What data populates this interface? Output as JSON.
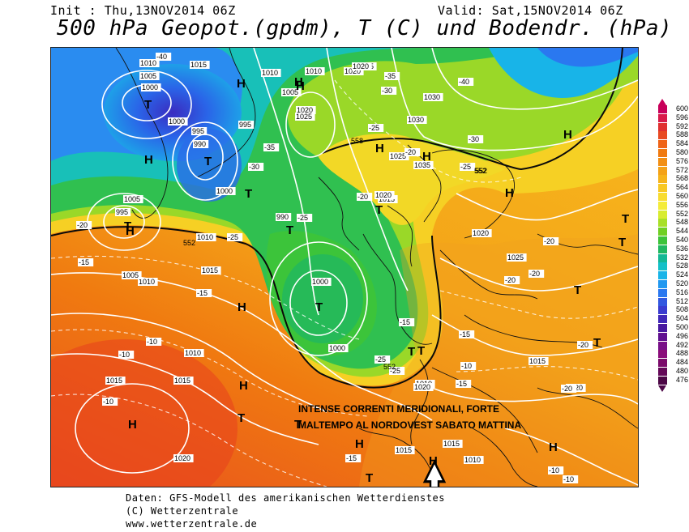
{
  "header": {
    "init": "Init : Thu,13NOV2014 06Z",
    "valid": "Valid: Sat,15NOV2014 06Z",
    "title": "500 hPa Geopot.(gpdm), T (C) und Bodendr. (hPa)"
  },
  "legend": {
    "values": [
      "600",
      "596",
      "592",
      "588",
      "584",
      "580",
      "576",
      "572",
      "568",
      "564",
      "560",
      "556",
      "552",
      "548",
      "544",
      "540",
      "536",
      "532",
      "528",
      "524",
      "520",
      "516",
      "512",
      "508",
      "504",
      "500",
      "496",
      "492",
      "488",
      "484",
      "480",
      "476"
    ],
    "colors": [
      "#c8005a",
      "#d81a4a",
      "#e03030",
      "#e84a22",
      "#ef6418",
      "#f07a10",
      "#f28f14",
      "#f4a218",
      "#f6b41c",
      "#f8c824",
      "#f8dc30",
      "#f4ec3a",
      "#d8ec30",
      "#a8e028",
      "#70d024",
      "#3cc43a",
      "#20b860",
      "#14b894",
      "#14c0c8",
      "#18b4e8",
      "#2098f0",
      "#2a78f0",
      "#3258e0",
      "#3a3cd0",
      "#4028b8",
      "#4818a0",
      "#601090",
      "#781088",
      "#8a0c7a",
      "#7a0a6a",
      "#640858",
      "#4c0646"
    ]
  },
  "annotation": {
    "line1": "INTENSE CORRENTI MERIDIONALI, FORTE",
    "line2": "MALTEMPO AL NORDOVEST SABATO MATTINA"
  },
  "pressure_labels": [
    "1010",
    "1015",
    "1005",
    "1000",
    "1010",
    "1010",
    "1005",
    "1020",
    "1025",
    "995",
    "990",
    "1030",
    "1025",
    "1035",
    "1020",
    "1030",
    "1015",
    "1000",
    "995",
    "1000",
    "1005",
    "1010",
    "1010",
    "1015",
    "1020",
    "990",
    "1025",
    "1005",
    "995",
    "1000",
    "1000",
    "1010",
    "1010",
    "1015",
    "1015",
    "1020",
    "1015",
    "1020",
    "1015",
    "1020",
    "1015",
    "1010",
    "1020",
    "1015",
    "1020"
  ],
  "temp_labels": [
    "-40",
    "-35",
    "-30",
    "-40",
    "-35",
    "-30",
    "-25",
    "-30",
    "-25",
    "-20",
    "-25",
    "-20",
    "-25",
    "-15",
    "-20",
    "-20",
    "-20",
    "-20",
    "-15",
    "-15",
    "-10",
    "-15",
    "-10",
    "-10",
    "-20",
    "-20",
    "-15",
    "-25",
    "-25",
    "-15",
    "-10",
    "-10",
    "-10"
  ],
  "systems": {
    "H": [
      "H",
      "H",
      "H",
      "H",
      "H",
      "H",
      "H",
      "H",
      "H",
      "H",
      "H",
      "H",
      "H",
      "H",
      "H"
    ],
    "T": [
      "T",
      "T",
      "T",
      "T",
      "T",
      "T",
      "T",
      "T",
      "T",
      "T",
      "T",
      "T",
      "T",
      "T",
      "T",
      "T"
    ]
  },
  "geopotential_labels": [
    "558",
    "552",
    "552",
    "552",
    "552"
  ],
  "footer": {
    "line1": "Daten: GFS-Modell des amerikanischen Wetterdienstes",
    "line2": "(C) Wetterzentrale",
    "line3": "www.wetterzentrale.de"
  }
}
